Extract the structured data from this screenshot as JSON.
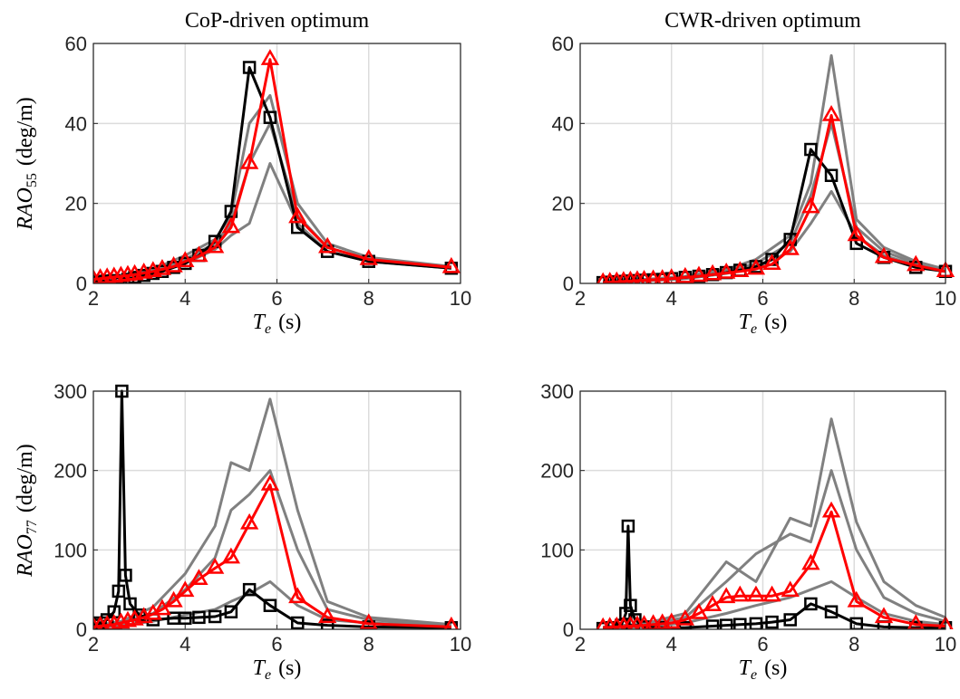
{
  "chart_data": [
    {
      "type": "line",
      "title": "CoP-driven optimum",
      "ylabel": [
        "RAO",
        "55",
        "(deg/m)"
      ],
      "xlabel": [
        "T",
        "e",
        "(s)"
      ],
      "xlim": [
        2,
        10
      ],
      "xticks": [
        2,
        4,
        6,
        8,
        10
      ],
      "ylim": [
        0,
        60
      ],
      "yticks": [
        0,
        20,
        40,
        60
      ],
      "grid": true,
      "series": [
        {
          "color": "#808080",
          "marker": "none",
          "x": [
            2.0,
            2.6,
            3.3,
            4.0,
            4.65,
            5.0,
            5.4,
            5.85,
            6.45,
            7.1,
            8.0,
            9.8
          ],
          "values": [
            0.8,
            1.5,
            2.8,
            5,
            8.5,
            12,
            15,
            30,
            15,
            8,
            5.5,
            3.8
          ]
        },
        {
          "color": "#808080",
          "marker": "none",
          "x": [
            2.0,
            2.6,
            3.3,
            4.0,
            4.65,
            5.0,
            5.4,
            5.85,
            6.45,
            7.1,
            8.0,
            9.8
          ],
          "values": [
            1,
            1.8,
            3,
            6,
            10,
            15,
            30,
            40,
            17,
            9,
            6,
            4
          ]
        },
        {
          "color": "#808080",
          "marker": "none",
          "x": [
            2.0,
            2.6,
            3.3,
            4.0,
            4.65,
            5.0,
            5.4,
            5.85,
            6.45,
            7.1,
            8.0,
            9.8
          ],
          "values": [
            1.2,
            2,
            3.5,
            7,
            11,
            17,
            40,
            47,
            20,
            10,
            6.5,
            4.2
          ]
        },
        {
          "color": "#000000",
          "marker": "square",
          "x": [
            2.0,
            2.15,
            2.3,
            2.45,
            2.6,
            2.75,
            2.9,
            3.1,
            3.3,
            3.5,
            3.75,
            4.0,
            4.3,
            4.65,
            5.0,
            5.4,
            5.85,
            6.45,
            7.1,
            8.0,
            9.8
          ],
          "values": [
            0.5,
            0.5,
            0.6,
            0.7,
            0,
            1,
            1.5,
            2,
            2.5,
            3,
            4,
            5,
            7,
            10.5,
            18,
            54,
            41.5,
            14,
            8,
            5.5,
            3.8
          ]
        },
        {
          "color": "#ff0000",
          "marker": "triangle",
          "x": [
            2.0,
            2.15,
            2.3,
            2.45,
            2.6,
            2.75,
            2.9,
            3.1,
            3.3,
            3.5,
            3.75,
            4.0,
            4.3,
            4.65,
            5.0,
            5.4,
            5.85,
            6.45,
            7.1,
            8.0,
            9.8
          ],
          "values": [
            1,
            1.2,
            1.4,
            1.6,
            1.8,
            2,
            2.2,
            2.6,
            3,
            3.5,
            4.2,
            5.5,
            6.8,
            9,
            14,
            30,
            56,
            16.5,
            9,
            6,
            4
          ]
        }
      ]
    },
    {
      "type": "line",
      "title": "CWR-driven optimum",
      "xlabel": [
        "T",
        "e",
        "(s)"
      ],
      "xlim": [
        2,
        10
      ],
      "xticks": [
        2,
        4,
        6,
        8,
        10
      ],
      "ylim": [
        0,
        60
      ],
      "yticks": [
        0,
        20,
        40,
        60
      ],
      "grid": true,
      "series": [
        {
          "color": "#808080",
          "marker": "none",
          "x": [
            2.5,
            3.4,
            4.3,
            5.2,
            5.85,
            6.6,
            7.05,
            7.5,
            8.05,
            8.65,
            9.35,
            10
          ],
          "values": [
            0.2,
            0.6,
            1.2,
            2.5,
            4,
            8,
            15,
            23,
            12,
            7,
            4.5,
            3
          ]
        },
        {
          "color": "#808080",
          "marker": "none",
          "x": [
            2.5,
            3.4,
            4.3,
            5.2,
            5.85,
            6.6,
            7.05,
            7.5,
            8.05,
            8.65,
            9.35,
            10
          ],
          "values": [
            0.3,
            0.8,
            1.5,
            3,
            5,
            10,
            22,
            40,
            14,
            8,
            5,
            3.3
          ]
        },
        {
          "color": "#808080",
          "marker": "none",
          "x": [
            2.5,
            3.4,
            4.3,
            5.2,
            5.85,
            6.6,
            7.05,
            7.5,
            8.05,
            8.65,
            9.35,
            10
          ],
          "values": [
            0.4,
            1,
            1.8,
            3.5,
            6,
            12,
            25,
            57,
            16,
            9,
            5.5,
            3.5
          ]
        },
        {
          "color": "#000000",
          "marker": "square",
          "x": [
            2.5,
            2.65,
            2.8,
            2.95,
            3.1,
            3.25,
            3.4,
            3.6,
            3.8,
            4.0,
            4.3,
            4.6,
            4.9,
            5.2,
            5.5,
            5.85,
            6.2,
            6.6,
            7.05,
            7.5,
            8.05,
            8.65,
            9.35,
            10
          ],
          "values": [
            0.2,
            0.3,
            0.4,
            0.5,
            0.6,
            0.7,
            0.8,
            0.9,
            1,
            1.2,
            1.5,
            1.8,
            2.2,
            2.7,
            3.3,
            4.2,
            6,
            11,
            33.5,
            27,
            10,
            6.5,
            4,
            3
          ]
        },
        {
          "color": "#ff0000",
          "marker": "triangle",
          "x": [
            2.5,
            2.65,
            2.8,
            2.95,
            3.1,
            3.25,
            3.4,
            3.6,
            3.8,
            4.0,
            4.3,
            4.6,
            4.9,
            5.2,
            5.5,
            5.85,
            6.2,
            6.6,
            7.05,
            7.5,
            8.05,
            8.65,
            9.35,
            10
          ],
          "values": [
            0.2,
            0.3,
            0.4,
            0.5,
            0.6,
            0.7,
            0.8,
            0.9,
            1,
            1.2,
            1.5,
            1.8,
            2.2,
            2.6,
            3,
            3.6,
            4.8,
            8.5,
            19,
            42,
            12,
            6.5,
            4.5,
            3
          ]
        }
      ]
    },
    {
      "type": "line",
      "ylabel": [
        "RAO",
        "77",
        "(deg/m)"
      ],
      "xlabel": [
        "T",
        "e",
        "(s)"
      ],
      "xlim": [
        2,
        10
      ],
      "xticks": [
        2,
        4,
        6,
        8,
        10
      ],
      "ylim": [
        0,
        300
      ],
      "yticks": [
        0,
        100,
        200,
        300
      ],
      "grid": true,
      "series": [
        {
          "color": "#808080",
          "marker": "none",
          "x": [
            2.0,
            2.6,
            3.3,
            4.0,
            4.65,
            5.0,
            5.4,
            5.85,
            6.45,
            7.1,
            8.0,
            9.8
          ],
          "values": [
            2,
            5,
            10,
            18,
            25,
            35,
            45,
            60,
            30,
            12,
            8,
            4
          ]
        },
        {
          "color": "#808080",
          "marker": "none",
          "x": [
            2.0,
            2.6,
            3.3,
            4.0,
            4.65,
            5.0,
            5.4,
            5.85,
            6.45,
            7.1,
            8.0,
            9.8
          ],
          "values": [
            3,
            8,
            20,
            50,
            90,
            150,
            170,
            200,
            100,
            25,
            12,
            5
          ]
        },
        {
          "color": "#808080",
          "marker": "none",
          "x": [
            2.0,
            2.6,
            3.3,
            4.0,
            4.65,
            5.0,
            5.4,
            5.85,
            6.45,
            7.1,
            8.0,
            9.8
          ],
          "values": [
            4,
            10,
            28,
            70,
            130,
            210,
            200,
            290,
            150,
            35,
            15,
            6
          ]
        },
        {
          "color": "#000000",
          "marker": "square",
          "x": [
            2.0,
            2.15,
            2.3,
            2.45,
            2.55,
            2.62,
            2.7,
            2.8,
            3.0,
            3.3,
            3.75,
            4.0,
            4.3,
            4.65,
            5.0,
            5.4,
            5.85,
            6.45,
            7.1,
            8.0,
            9.8
          ],
          "values": [
            5,
            8,
            12,
            22,
            48,
            300,
            68,
            32,
            18,
            12,
            14,
            14,
            15,
            16,
            22,
            50,
            30,
            8,
            5,
            3,
            2
          ]
        },
        {
          "color": "#ff0000",
          "marker": "triangle",
          "x": [
            2.0,
            2.15,
            2.3,
            2.45,
            2.6,
            2.75,
            2.9,
            3.1,
            3.3,
            3.5,
            3.75,
            4.0,
            4.3,
            4.65,
            5.0,
            5.4,
            5.85,
            6.45,
            7.1,
            8.0,
            9.8
          ],
          "values": [
            3,
            4,
            5,
            6,
            8,
            10,
            12,
            15,
            19,
            25,
            35,
            48,
            63,
            77,
            90,
            133,
            182,
            40,
            15,
            7,
            3
          ]
        }
      ]
    },
    {
      "type": "line",
      "xlabel": [
        "T",
        "e",
        "(s)"
      ],
      "xlim": [
        2,
        10
      ],
      "xticks": [
        2,
        4,
        6,
        8,
        10
      ],
      "ylim": [
        0,
        300
      ],
      "yticks": [
        0,
        100,
        200,
        300
      ],
      "grid": true,
      "series": [
        {
          "color": "#808080",
          "marker": "none",
          "x": [
            2.5,
            3.4,
            4.3,
            5.2,
            5.85,
            6.6,
            7.05,
            7.5,
            8.05,
            8.65,
            9.35,
            10
          ],
          "values": [
            1,
            3,
            8,
            20,
            30,
            40,
            50,
            60,
            40,
            20,
            10,
            6
          ]
        },
        {
          "color": "#808080",
          "marker": "none",
          "x": [
            2.5,
            3.4,
            4.3,
            5.2,
            5.85,
            6.6,
            7.05,
            7.5,
            8.05,
            8.65,
            9.35,
            10
          ],
          "values": [
            2,
            5,
            15,
            60,
            95,
            120,
            110,
            200,
            100,
            40,
            20,
            10
          ]
        },
        {
          "color": "#808080",
          "marker": "none",
          "x": [
            2.5,
            3.4,
            4.3,
            5.2,
            5.85,
            6.6,
            7.05,
            7.5,
            8.05,
            8.65,
            9.35,
            10
          ],
          "values": [
            3,
            7,
            20,
            85,
            60,
            140,
            130,
            265,
            135,
            60,
            30,
            15
          ]
        },
        {
          "color": "#000000",
          "marker": "square",
          "x": [
            2.5,
            2.7,
            2.9,
            3.0,
            3.05,
            3.1,
            3.2,
            3.4,
            3.8,
            4.3,
            4.9,
            5.2,
            5.5,
            5.85,
            6.2,
            6.6,
            7.05,
            7.5,
            8.05,
            8.65,
            9.35,
            10
          ],
          "values": [
            1,
            2,
            5,
            20,
            130,
            30,
            12,
            3,
            2,
            2,
            4,
            5,
            6,
            7,
            9,
            12,
            32,
            22,
            7,
            3,
            2,
            2
          ]
        },
        {
          "color": "#ff0000",
          "marker": "triangle",
          "x": [
            2.5,
            2.65,
            2.8,
            2.95,
            3.1,
            3.25,
            3.4,
            3.6,
            3.8,
            4.0,
            4.3,
            4.6,
            4.9,
            5.2,
            5.5,
            5.85,
            6.2,
            6.6,
            7.05,
            7.5,
            8.05,
            8.65,
            9.35,
            10
          ],
          "values": [
            2,
            2.5,
            3,
            3.5,
            4,
            4.5,
            5,
            6,
            7,
            8,
            12,
            20,
            30,
            40,
            42,
            42,
            42,
            48,
            82,
            148,
            35,
            15,
            6,
            4
          ]
        }
      ]
    }
  ]
}
